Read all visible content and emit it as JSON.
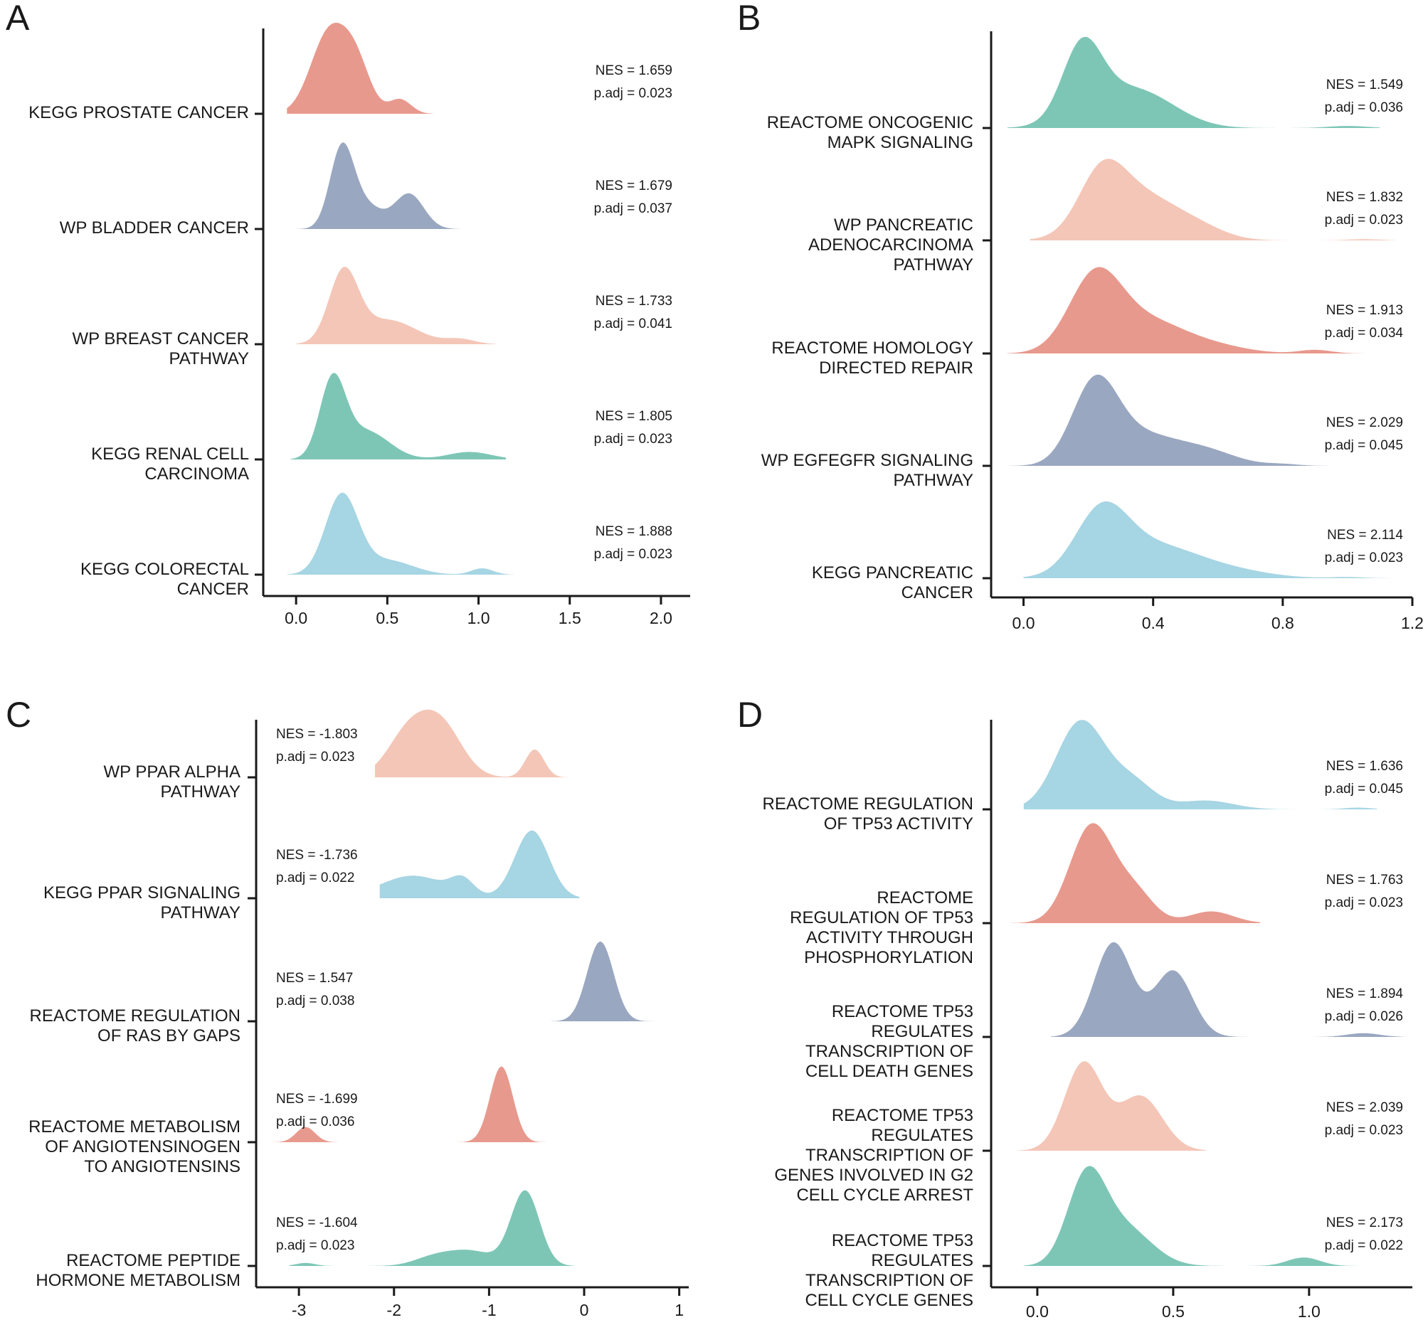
{
  "chart_data": [
    {
      "type": "ridgeline",
      "panel": "A",
      "x_ticks": [
        "0.0",
        "0.5",
        "1.0",
        "1.5",
        "2.0"
      ],
      "x_tick_values": [
        0,
        0.5,
        1.0,
        1.5,
        2.0
      ],
      "xlim": [
        -0.18,
        2.16
      ],
      "ridges": [
        {
          "label": [
            "KEGG PROSTATE CANCER"
          ],
          "nes": "NES = 1.659",
          "padj": "p.adj = 0.023",
          "color": "#E8998D",
          "range": [
            -0.05,
            0.75
          ],
          "height": 1.0,
          "peaks": [
            [
              0.18,
              0.1,
              1.0
            ],
            [
              0.33,
              0.08,
              0.55
            ],
            [
              0.57,
              0.06,
              0.18
            ]
          ]
        },
        {
          "label": [
            "WP BLADDER CANCER"
          ],
          "nes": "NES = 1.679",
          "padj": "p.adj = 0.037",
          "color": "#9AA7C0",
          "range": [
            -0.02,
            0.9
          ],
          "height": 0.95,
          "peaks": [
            [
              0.25,
              0.065,
              1.0
            ],
            [
              0.38,
              0.09,
              0.3
            ],
            [
              0.62,
              0.08,
              0.45
            ]
          ]
        },
        {
          "label": [
            "WP BREAST CANCER",
            "PATHWAY"
          ],
          "nes": "NES = 1.733",
          "padj": "p.adj = 0.041",
          "color": "#F4C6B7",
          "range": [
            0.0,
            1.1
          ],
          "height": 0.85,
          "peaks": [
            [
              0.26,
              0.08,
              1.0
            ],
            [
              0.5,
              0.16,
              0.35
            ],
            [
              0.9,
              0.08,
              0.07
            ],
            [
              1.55,
              0.15,
              0.025
            ],
            [
              1.85,
              0.12,
              0.02
            ]
          ]
        },
        {
          "label": [
            "KEGG RENAL CELL",
            "CARCINOMA"
          ],
          "nes": "NES = 1.805",
          "padj": "p.adj = 0.023",
          "color": "#7DC6B6",
          "range": [
            -0.03,
            1.15
          ],
          "height": 0.95,
          "peaks": [
            [
              0.2,
              0.07,
              1.0
            ],
            [
              0.38,
              0.13,
              0.38
            ],
            [
              0.95,
              0.12,
              0.1
            ]
          ]
        },
        {
          "label": [
            "KEGG COLORECTAL",
            "CANCER"
          ],
          "nes": "NES = 1.888",
          "padj": "p.adj = 0.023",
          "color": "#A6D5E3",
          "range": [
            -0.05,
            1.2
          ],
          "height": 0.9,
          "peaks": [
            [
              0.25,
              0.09,
              1.0
            ],
            [
              0.5,
              0.14,
              0.18
            ],
            [
              1.02,
              0.06,
              0.08
            ]
          ]
        }
      ]
    },
    {
      "type": "ridgeline",
      "panel": "B",
      "x_ticks": [
        "0.0",
        "0.4",
        "0.8",
        "1.2"
      ],
      "x_tick_values": [
        0,
        0.4,
        0.8,
        1.2
      ],
      "xlim": [
        -0.1,
        1.2
      ],
      "ridges": [
        {
          "label": [
            "REACTOME ONCOGENIC",
            "MAPK SIGNALING"
          ],
          "nes": "NES = 1.549",
          "padj": "p.adj = 0.036",
          "color": "#7DC6B6",
          "range": [
            -0.05,
            1.1
          ],
          "height": 0.95,
          "peaks": [
            [
              0.18,
              0.06,
              1.0
            ],
            [
              0.3,
              0.12,
              0.5
            ],
            [
              0.42,
              0.1,
              0.15
            ],
            [
              1.0,
              0.06,
              0.03
            ]
          ]
        },
        {
          "label": [
            "WP PANCREATIC",
            "ADENOCARCINOMA",
            "PATHWAY"
          ],
          "nes": "NES = 1.832",
          "padj": "p.adj = 0.023",
          "color": "#F4C6B7",
          "range": [
            0.02,
            1.15
          ],
          "height": 0.85,
          "peaks": [
            [
              0.24,
              0.07,
              0.85
            ],
            [
              0.36,
              0.12,
              0.75
            ],
            [
              0.55,
              0.08,
              0.12
            ],
            [
              1.05,
              0.05,
              0.02
            ]
          ]
        },
        {
          "label": [
            "REACTOME HOMOLOGY",
            "DIRECTED REPAIR"
          ],
          "nes": "NES = 1.913",
          "padj": "p.adj = 0.034",
          "color": "#E8998D",
          "range": [
            -0.05,
            1.05
          ],
          "height": 0.9,
          "peaks": [
            [
              0.22,
              0.08,
              1.0
            ],
            [
              0.38,
              0.12,
              0.45
            ],
            [
              0.6,
              0.1,
              0.08
            ],
            [
              0.9,
              0.05,
              0.05
            ]
          ]
        },
        {
          "label": [
            "WP EGFEGFR SIGNALING",
            "PATHWAY"
          ],
          "nes": "NES = 2.029",
          "padj": "p.adj = 0.045",
          "color": "#9AA7C0",
          "range": [
            -0.05,
            1.1
          ],
          "height": 0.95,
          "peaks": [
            [
              0.22,
              0.07,
              1.0
            ],
            [
              0.36,
              0.1,
              0.35
            ],
            [
              0.55,
              0.1,
              0.2
            ],
            [
              0.8,
              0.05,
              0.02
            ]
          ]
        },
        {
          "label": [
            "KEGG PANCREATIC",
            "CANCER"
          ],
          "nes": "NES = 2.114",
          "padj": "p.adj = 0.023",
          "color": "#A6D5E3",
          "range": [
            0.0,
            1.15
          ],
          "height": 0.8,
          "peaks": [
            [
              0.24,
              0.08,
              1.0
            ],
            [
              0.4,
              0.14,
              0.55
            ],
            [
              0.65,
              0.12,
              0.1
            ],
            [
              1.0,
              0.05,
              0.02
            ]
          ]
        }
      ]
    },
    {
      "type": "ridgeline",
      "panel": "C",
      "x_ticks": [
        "-3",
        "-2",
        "-1",
        "0",
        "1"
      ],
      "x_tick_values": [
        -3,
        -2,
        -1,
        0,
        1
      ],
      "xlim": [
        -3.45,
        1.1
      ],
      "ridges": [
        {
          "label": [
            "WP PPAR ALPHA",
            "PATHWAY"
          ],
          "nes": "NES = -1.803",
          "padj": "p.adj = 0.023",
          "color": "#F4C6B7",
          "range": [
            -2.2,
            -0.15
          ],
          "height": 0.85,
          "peaks": [
            [
              -1.85,
              0.22,
              0.7
            ],
            [
              -1.5,
              0.22,
              0.8
            ],
            [
              -0.52,
              0.1,
              0.45
            ]
          ]
        },
        {
          "label": [
            "KEGG PPAR SIGNALING",
            "PATHWAY"
          ],
          "nes": "NES = -1.736",
          "padj": "p.adj = 0.022",
          "color": "#A6D5E3",
          "range": [
            -2.15,
            -0.05
          ],
          "height": 0.85,
          "peaks": [
            [
              -1.8,
              0.35,
              0.3
            ],
            [
              -1.28,
              0.12,
              0.2
            ],
            [
              -0.55,
              0.18,
              0.9
            ]
          ]
        },
        {
          "label": [
            "REACTOME REGULATION",
            "OF RAS BY GAPS"
          ],
          "nes": "NES = 1.547",
          "padj": "p.adj = 0.038",
          "color": "#9AA7C0",
          "range": [
            -0.35,
            0.9
          ],
          "height": 1.0,
          "peaks": [
            [
              0.17,
              0.14,
              1.0
            ]
          ]
        },
        {
          "label": [
            "REACTOME METABOLISM",
            "OF ANGIOTENSINOGEN",
            "TO ANGIOTENSINS"
          ],
          "nes": "NES = -1.699",
          "padj": "p.adj = 0.036",
          "color": "#E8998D",
          "range": [
            -3.3,
            -0.25
          ],
          "height": 0.95,
          "peaks": [
            [
              -2.93,
              0.1,
              0.2
            ],
            [
              -0.87,
              0.12,
              1.0
            ]
          ]
        },
        {
          "label": [
            "REACTOME PEPTIDE",
            "HORMONE METABOLISM"
          ],
          "nes": "NES = -1.604",
          "padj": "p.adj = 0.023",
          "color": "#7DC6B6",
          "range": [
            -3.1,
            -0.1
          ],
          "height": 0.95,
          "peaks": [
            [
              -2.93,
              0.1,
              0.04
            ],
            [
              -1.6,
              0.2,
              0.1
            ],
            [
              -1.2,
              0.25,
              0.2
            ],
            [
              -0.62,
              0.15,
              1.0
            ]
          ]
        }
      ]
    },
    {
      "type": "ridgeline",
      "panel": "D",
      "x_ticks": [
        "0.0",
        "0.5",
        "1.0"
      ],
      "x_tick_values": [
        0,
        0.5,
        1.0
      ],
      "xlim": [
        -0.17,
        1.38
      ],
      "ridges": [
        {
          "label": [
            "REACTOME REGULATION",
            "OF TP53 ACTIVITY"
          ],
          "nes": "NES = 1.636",
          "padj": "p.adj = 0.045",
          "color": "#A6D5E3",
          "range": [
            -0.05,
            1.25
          ],
          "height": 0.85,
          "peaks": [
            [
              0.16,
              0.09,
              1.0
            ],
            [
              0.35,
              0.08,
              0.3
            ],
            [
              0.62,
              0.1,
              0.1
            ],
            [
              1.18,
              0.05,
              0.02
            ]
          ]
        },
        {
          "label": [
            "REACTOME",
            "REGULATION OF TP53",
            "ACTIVITY THROUGH",
            "PHOSPHORYLATION"
          ],
          "nes": "NES = 1.763",
          "padj": "p.adj = 0.023",
          "color": "#E8998D",
          "range": [
            -0.1,
            0.82
          ],
          "height": 0.95,
          "peaks": [
            [
              0.2,
              0.08,
              1.0
            ],
            [
              0.36,
              0.07,
              0.3
            ],
            [
              0.64,
              0.08,
              0.12
            ]
          ]
        },
        {
          "label": [
            "REACTOME TP53",
            "REGULATES",
            "TRANSCRIPTION OF",
            "CELL DEATH GENES"
          ],
          "nes": "NES = 1.894",
          "padj": "p.adj = 0.026",
          "color": "#9AA7C0",
          "range": [
            0.05,
            1.35
          ],
          "height": 0.9,
          "peaks": [
            [
              0.28,
              0.07,
              1.0
            ],
            [
              0.5,
              0.07,
              0.7
            ],
            [
              1.2,
              0.06,
              0.04
            ]
          ]
        },
        {
          "label": [
            "REACTOME TP53",
            "REGULATES",
            "TRANSCRIPTION OF",
            "GENES INVOLVED IN G2",
            "CELL CYCLE ARREST"
          ],
          "nes": "NES = 2.039",
          "padj": "p.adj = 0.023",
          "color": "#F4C6B7",
          "range": [
            -0.08,
            0.62
          ],
          "height": 0.85,
          "peaks": [
            [
              0.17,
              0.07,
              1.0
            ],
            [
              0.38,
              0.08,
              0.62
            ]
          ]
        },
        {
          "label": [
            "REACTOME TP53",
            "REGULATES",
            "TRANSCRIPTION OF",
            "CELL CYCLE GENES"
          ],
          "nes": "NES = 2.173",
          "padj": "p.adj = 0.022",
          "color": "#7DC6B6",
          "range": [
            -0.05,
            1.35
          ],
          "height": 0.95,
          "peaks": [
            [
              0.18,
              0.07,
              1.0
            ],
            [
              0.32,
              0.1,
              0.45
            ],
            [
              0.98,
              0.06,
              0.1
            ]
          ]
        }
      ]
    }
  ]
}
